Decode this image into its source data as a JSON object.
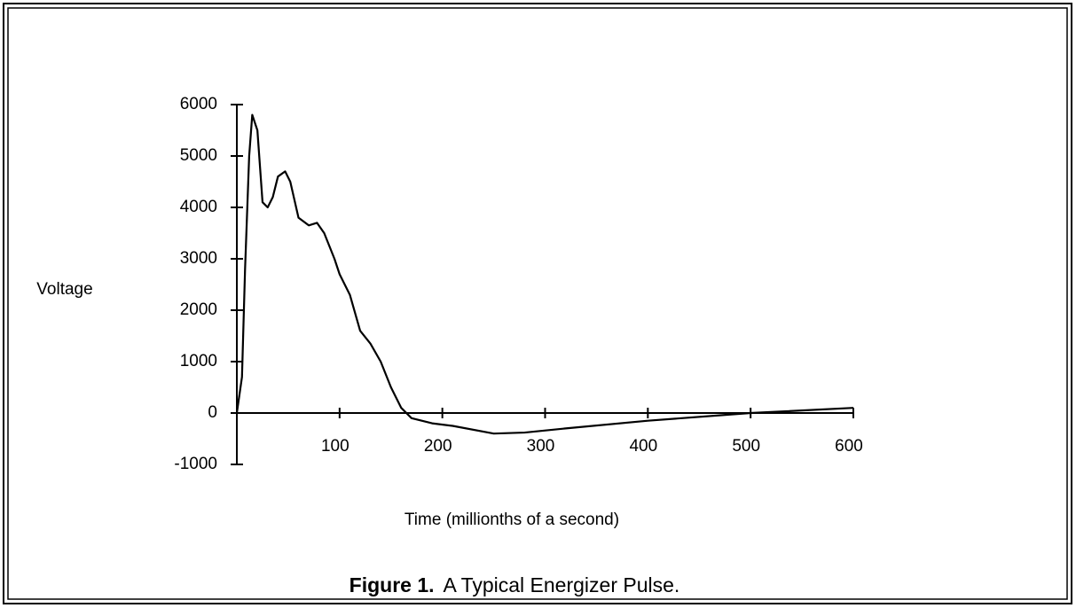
{
  "chart_data": {
    "type": "line",
    "y_label": "Voltage",
    "x_label": "Time (millionths of a second)",
    "caption_label": "Figure 1.",
    "caption_text": "A Typical Energizer Pulse.",
    "xlim": [
      0,
      600
    ],
    "ylim": [
      -1000,
      6000
    ],
    "xticks": [
      100,
      200,
      300,
      400,
      500,
      600
    ],
    "yticks": [
      -1000,
      0,
      1000,
      2000,
      3000,
      4000,
      5000,
      6000
    ],
    "series": [
      {
        "color": "#000000",
        "x": [
          0,
          5,
          8,
          12,
          15,
          20,
          25,
          30,
          35,
          40,
          47,
          52,
          60,
          70,
          78,
          85,
          95,
          100,
          110,
          120,
          130,
          140,
          150,
          160,
          170,
          190,
          210,
          250,
          280,
          320,
          400,
          500,
          600
        ],
        "values": [
          0,
          700,
          2800,
          5000,
          5800,
          5500,
          4100,
          4000,
          4200,
          4600,
          4700,
          4500,
          3800,
          3650,
          3700,
          3500,
          3000,
          2700,
          2300,
          1600,
          1350,
          1000,
          500,
          100,
          -100,
          -200,
          -250,
          -400,
          -380,
          -300,
          -150,
          0,
          100
        ]
      }
    ]
  }
}
